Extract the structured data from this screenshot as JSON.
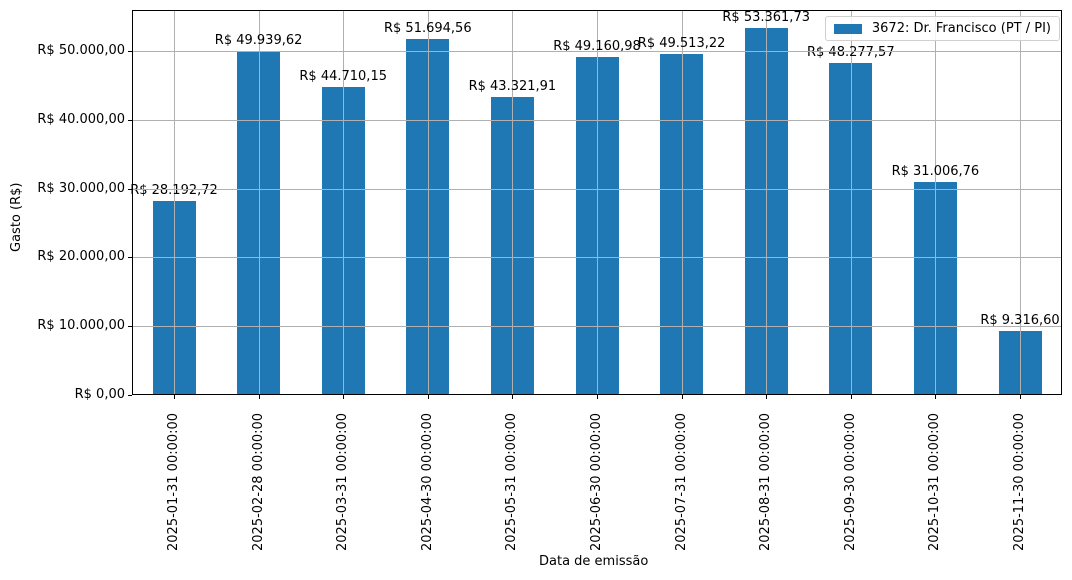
{
  "chart_data": {
    "type": "bar",
    "title": "",
    "xlabel": "Data de emissão",
    "ylabel": "Gasto (R$)",
    "ylim": [
      0,
      55960
    ],
    "grid": true,
    "legend_position": "upper right",
    "categories": [
      "2025-01-31 00:00:00",
      "2025-02-28 00:00:00",
      "2025-03-31 00:00:00",
      "2025-04-30 00:00:00",
      "2025-05-31 00:00:00",
      "2025-06-30 00:00:00",
      "2025-07-31 00:00:00",
      "2025-08-31 00:00:00",
      "2025-09-30 00:00:00",
      "2025-10-31 00:00:00",
      "2025-11-30 00:00:00"
    ],
    "series": [
      {
        "name": "3672: Dr. Francisco (PT / PI)",
        "color": "#1f77b4",
        "values": [
          28192.72,
          49939.62,
          44710.15,
          51694.56,
          43321.91,
          49160.98,
          49513.22,
          53361.73,
          48277.57,
          31006.76,
          9316.6
        ],
        "labels": [
          "R$ 28.192,72",
          "R$ 49.939,62",
          "R$ 44.710,15",
          "R$ 51.694,56",
          "R$ 43.321,91",
          "R$ 49.160,98",
          "R$ 49.513,22",
          "R$ 53.361,73",
          "R$ 48.277,57",
          "R$ 31.006,76",
          "R$ 9.316,60"
        ]
      }
    ],
    "yticks": [
      {
        "value": 0,
        "label": "R$ 0,00"
      },
      {
        "value": 10000,
        "label": "R$ 10.000,00"
      },
      {
        "value": 20000,
        "label": "R$ 20.000,00"
      },
      {
        "value": 30000,
        "label": "R$ 30.000,00"
      },
      {
        "value": 40000,
        "label": "R$ 40.000,00"
      },
      {
        "value": 50000,
        "label": "R$ 50.000,00"
      }
    ]
  }
}
